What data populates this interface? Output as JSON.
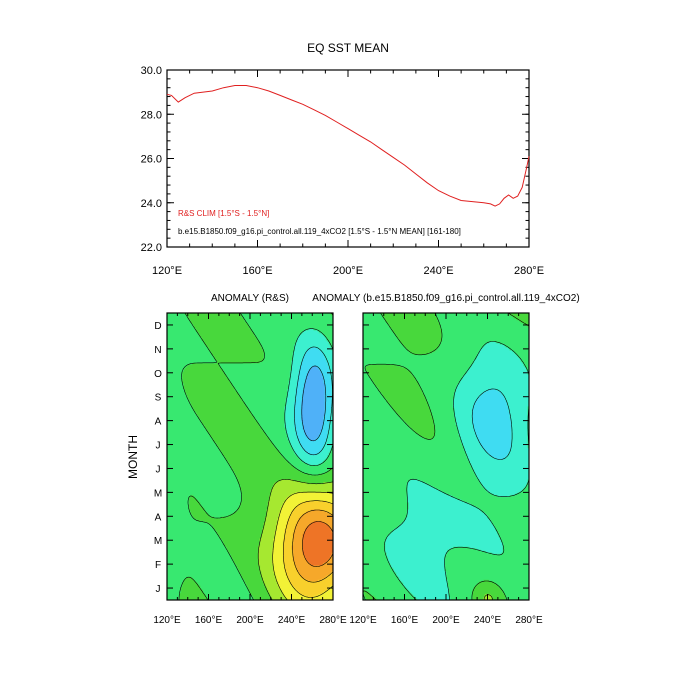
{
  "top_panel": {
    "title": "EQ SST MEAN",
    "legend_red": "R&S CLIM [1.5°S - 1.5°N]",
    "legend_black": "b.e15.B1850.f09_g16.pi_control.all.119_4xCO2 [1.5°S - 1.5°N MEAN] [161-180]"
  },
  "bottom_left": {
    "title": "ANOMALY (R&S)",
    "ylabel": "MONTH"
  },
  "bottom_right": {
    "title": "ANOMALY (b.e15.B1850.f09_g16.pi_control.all.119_4xCO2)"
  },
  "colors": {
    "line_red": "#e02020",
    "palette": [
      "#0a2fcf",
      "#1f5ee8",
      "#3d8cf5",
      "#4fb1f8",
      "#3fdcf2",
      "#3cf0cf",
      "#38e870",
      "#48d83c",
      "#a6e830",
      "#f2f236",
      "#f8d02c",
      "#f6a82a",
      "#ee7426",
      "#d23a1e"
    ]
  },
  "chart_data": [
    {
      "type": "line",
      "title": "EQ SST MEAN",
      "xlabel": "",
      "ylabel": "",
      "xlim": [
        120,
        280
      ],
      "ylim": [
        22,
        30
      ],
      "xticks": [
        "120°E",
        "160°E",
        "200°E",
        "240°E",
        "280°E"
      ],
      "yticks": [
        "22.0",
        "24.0",
        "26.0",
        "28.0",
        "30.0"
      ],
      "grid": false,
      "legend_placement": "lower-left",
      "series": [
        {
          "name": "R&S CLIM [1.5°S - 1.5°N]",
          "x": [
            120,
            122,
            125,
            128,
            132,
            136,
            140,
            145,
            150,
            155,
            160,
            165,
            170,
            175,
            180,
            185,
            190,
            195,
            200,
            205,
            210,
            215,
            220,
            225,
            230,
            235,
            240,
            245,
            250,
            255,
            260,
            263,
            265,
            267,
            269,
            271,
            273,
            275,
            277,
            279,
            280
          ],
          "y": [
            28.9,
            28.85,
            28.55,
            28.75,
            28.95,
            29.0,
            29.05,
            29.2,
            29.3,
            29.3,
            29.2,
            29.05,
            28.85,
            28.65,
            28.45,
            28.2,
            27.95,
            27.65,
            27.35,
            27.05,
            26.75,
            26.4,
            26.05,
            25.7,
            25.3,
            24.9,
            24.55,
            24.3,
            24.1,
            24.05,
            24.0,
            23.95,
            23.85,
            23.95,
            24.2,
            24.35,
            24.2,
            24.3,
            24.7,
            25.6,
            26.1
          ]
        }
      ]
    },
    {
      "type": "heatmap",
      "title": "ANOMALY (R&S)",
      "xlabel": "",
      "ylabel": "MONTH",
      "xlim": [
        120,
        280
      ],
      "xticks": [
        "120°E",
        "160°E",
        "200°E",
        "240°E",
        "280°E"
      ],
      "yticks": [
        "J",
        "F",
        "M",
        "A",
        "M",
        "J",
        "J",
        "A",
        "S",
        "O",
        "N",
        "D"
      ],
      "contour_interval": 0.4,
      "anomalies": [
        {
          "x": 265,
          "m": 2.3,
          "sx": 28,
          "sy": 1.8,
          "a": 2.4
        },
        {
          "x": 262,
          "m": 8.2,
          "sx": 15,
          "sy": 1.9,
          "a": -1.7
        },
        {
          "x": 125,
          "m": 2.0,
          "sx": 8,
          "sy": 4.0,
          "a": -0.3
        }
      ]
    },
    {
      "type": "heatmap",
      "title": "ANOMALY (b.e15.B1850.f09_g16.pi_control.all.119_4xCO2)",
      "xlabel": "",
      "ylabel": "",
      "xlim": [
        120,
        280
      ],
      "xticks": [
        "120°E",
        "160°E",
        "200°E",
        "240°E",
        "280°E"
      ],
      "yticks": [],
      "contour_interval": 0.4,
      "anomalies": [
        {
          "x": 250,
          "m": 8.0,
          "sx": 28,
          "sy": 2.0,
          "a": -0.9
        },
        {
          "x": 195,
          "m": 2.5,
          "sx": 60,
          "sy": 2.5,
          "a": -0.5
        },
        {
          "x": 240,
          "m": 0.1,
          "sx": 10,
          "sy": 0.5,
          "a": 0.5
        }
      ]
    }
  ]
}
